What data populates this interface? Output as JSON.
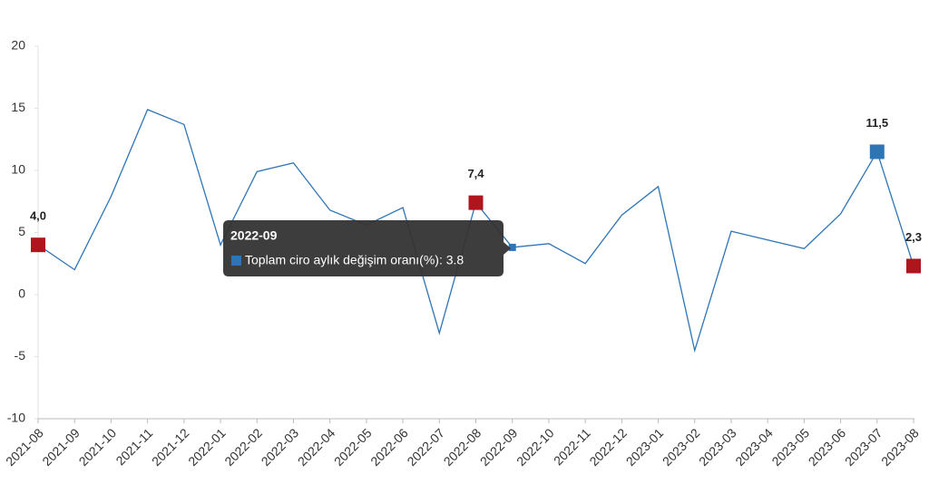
{
  "chart_data": {
    "type": "line",
    "categories": [
      "2021-08",
      "2021-09",
      "2021-10",
      "2021-11",
      "2021-12",
      "2022-01",
      "2022-02",
      "2022-03",
      "2022-04",
      "2022-05",
      "2022-06",
      "2022-07",
      "2022-08",
      "2022-09",
      "2022-10",
      "2022-11",
      "2022-12",
      "2023-01",
      "2023-02",
      "2023-03",
      "2023-04",
      "2023-05",
      "2023-06",
      "2023-07",
      "2023-08"
    ],
    "series": [
      {
        "name": "Toplam ciro aylık değişim oranı(%)",
        "color": "#2e75b6",
        "values": [
          4.0,
          2.0,
          7.9,
          14.9,
          13.7,
          4.0,
          9.9,
          10.6,
          6.8,
          5.6,
          7.0,
          -3.1,
          7.4,
          3.8,
          4.1,
          2.5,
          6.4,
          8.7,
          -4.5,
          5.1,
          4.4,
          3.7,
          6.5,
          11.5,
          2.3
        ],
        "value_labels": [
          "4,0",
          null,
          null,
          null,
          null,
          null,
          null,
          null,
          null,
          null,
          null,
          null,
          "7,4",
          null,
          null,
          null,
          null,
          null,
          null,
          null,
          null,
          null,
          null,
          "11,5",
          "2,3"
        ],
        "marker_colors": [
          "#b0141c",
          null,
          null,
          null,
          null,
          null,
          null,
          null,
          null,
          null,
          null,
          null,
          "#b0141c",
          "#2e75b6",
          null,
          null,
          null,
          null,
          null,
          null,
          null,
          null,
          null,
          "#2e75b6",
          "#b0141c"
        ]
      }
    ],
    "ylim": [
      -10,
      20
    ],
    "yticks": [
      -10,
      -5,
      0,
      5,
      10,
      15,
      20
    ],
    "grid": false,
    "tooltip": {
      "title": "2022-09",
      "text": "Toplam ciro aylık değişim oranı(%): 3.8"
    }
  }
}
